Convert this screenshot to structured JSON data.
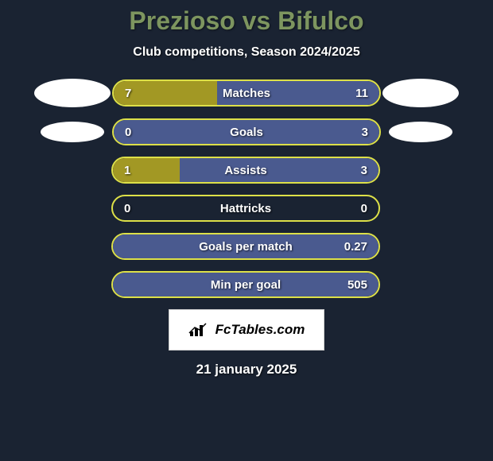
{
  "title": "Prezioso vs Bifulco",
  "subtitle": "Club competitions, Season 2024/2025",
  "brand": "FcTables.com",
  "date": "21 january 2025",
  "colors": {
    "background": "#1a2332",
    "title_color": "#7d955f",
    "bar_border": "#dde048",
    "left_fill": "#a29824",
    "right_fill": "#4a5a8f",
    "text": "#ffffff"
  },
  "stats": [
    {
      "label": "Matches",
      "left_val": "7",
      "right_val": "11",
      "left_pct": 38.9,
      "right_pct": 61.1,
      "has_players": true,
      "player_img_row": 0
    },
    {
      "label": "Goals",
      "left_val": "0",
      "right_val": "3",
      "left_pct": 0,
      "right_pct": 100,
      "has_players": true,
      "player_img_row": 1
    },
    {
      "label": "Assists",
      "left_val": "1",
      "right_val": "3",
      "left_pct": 25,
      "right_pct": 75,
      "has_players": false
    },
    {
      "label": "Hattricks",
      "left_val": "0",
      "right_val": "0",
      "left_pct": 0,
      "right_pct": 0,
      "has_players": false
    },
    {
      "label": "Goals per match",
      "left_val": "",
      "right_val": "0.27",
      "left_pct": 0,
      "right_pct": 100,
      "has_players": false
    },
    {
      "label": "Min per goal",
      "left_val": "",
      "right_val": "505",
      "left_pct": 0,
      "right_pct": 100,
      "has_players": false
    }
  ],
  "player_ellipses": {
    "left_small_width": 80,
    "left_small_height": 26
  }
}
